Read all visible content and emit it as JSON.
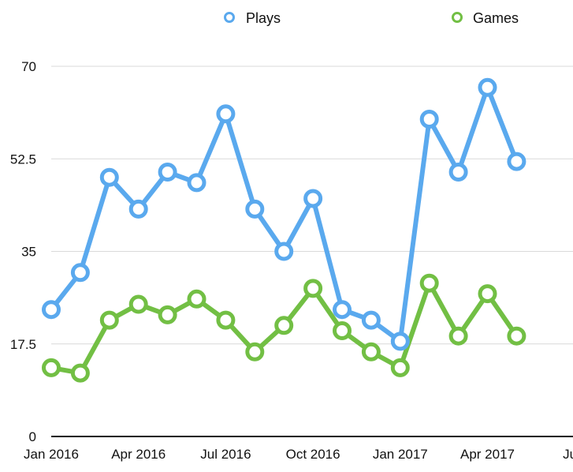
{
  "chart_data": {
    "type": "line",
    "x": [
      "2016-01",
      "2016-02",
      "2016-03",
      "2016-04",
      "2016-05",
      "2016-06",
      "2016-07",
      "2016-08",
      "2016-09",
      "2016-10",
      "2016-11",
      "2016-12",
      "2017-01",
      "2017-02",
      "2017-03",
      "2017-04",
      "2017-05"
    ],
    "series": [
      {
        "name": "Plays",
        "color": "#5aa9ee",
        "values": [
          24,
          31,
          49,
          43,
          50,
          48,
          61,
          43,
          35,
          45,
          24,
          22,
          18,
          60,
          50,
          66,
          52
        ]
      },
      {
        "name": "Games",
        "color": "#72bf44",
        "values": [
          13,
          12,
          22,
          25,
          23,
          26,
          22,
          16,
          21,
          28,
          20,
          16,
          13,
          29,
          19,
          27,
          19
        ]
      }
    ],
    "xlabel": "",
    "ylabel": "",
    "ylim": [
      0,
      70
    ],
    "yticks": [
      "0",
      "17.5",
      "35",
      "52.5",
      "70"
    ],
    "xticks": [
      "Jan 2016",
      "Apr 2016",
      "Jul 2016",
      "Oct 2016",
      "Jan 2017",
      "Apr 2017",
      "July"
    ],
    "grid": true,
    "legend_position": "top"
  }
}
